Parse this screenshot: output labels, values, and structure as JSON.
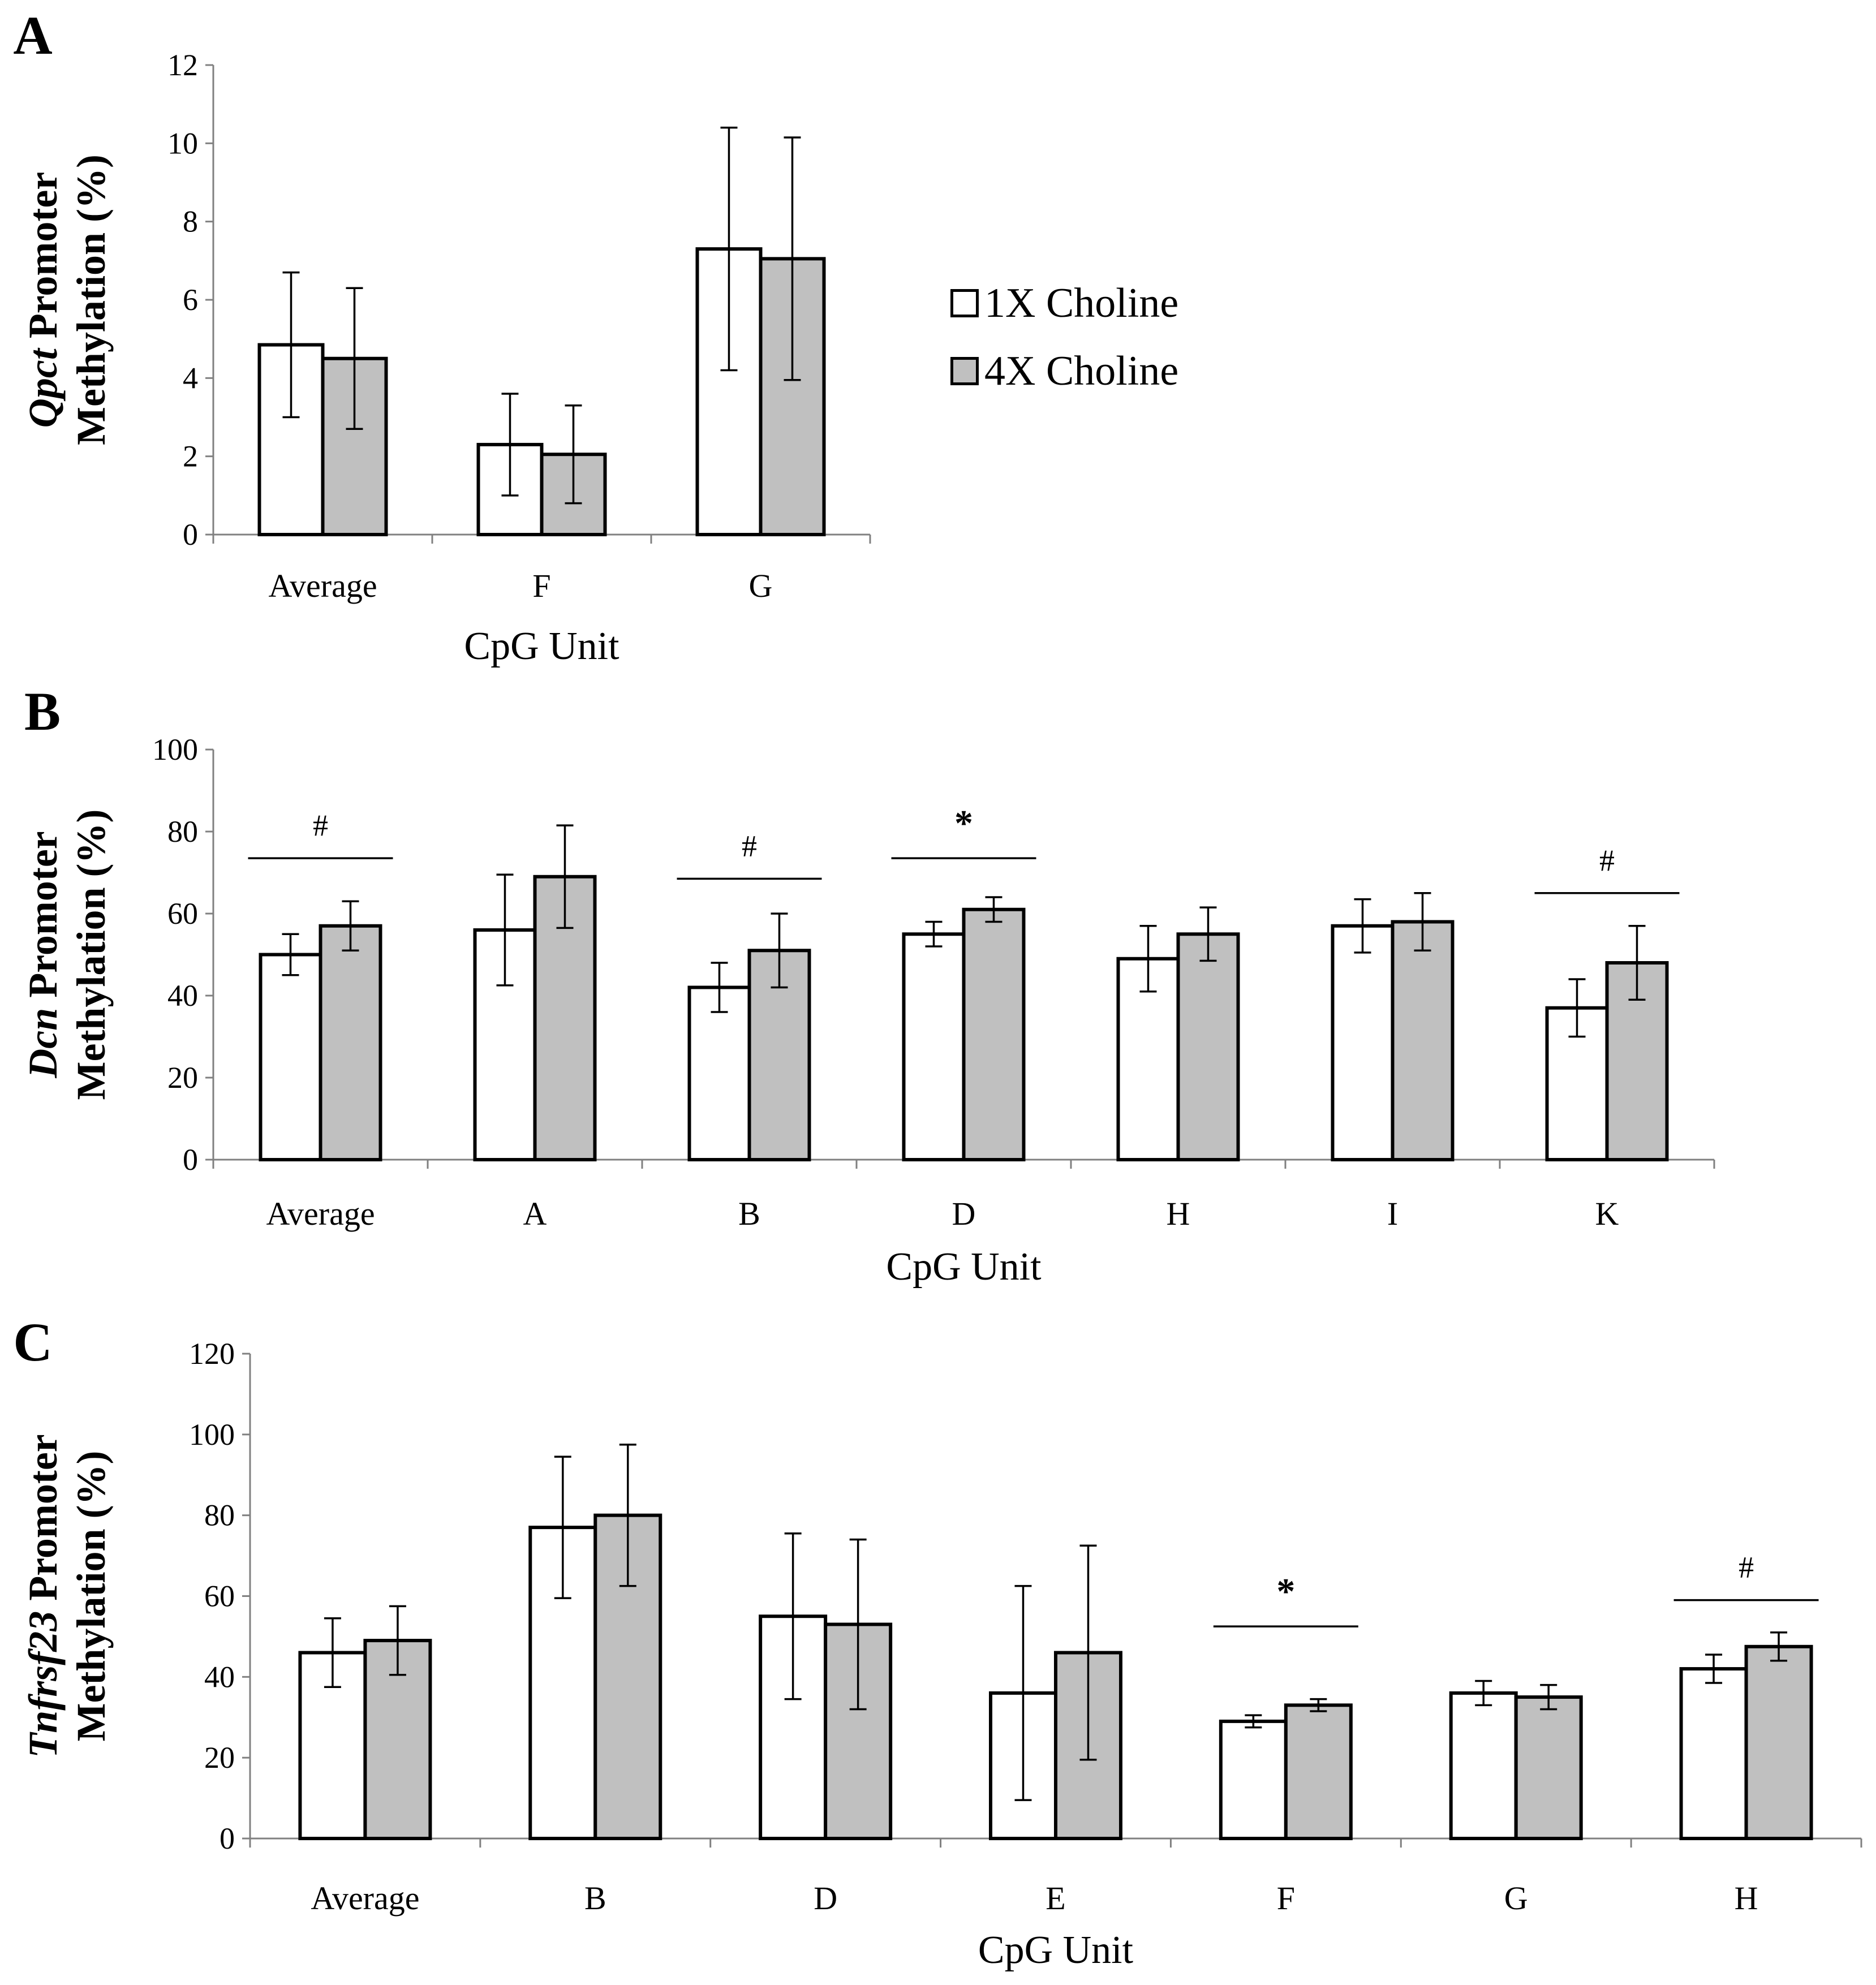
{
  "colors": {
    "series1": "#ffffff",
    "series2": "#c0c0c0",
    "stroke": "#000000"
  },
  "legend": {
    "series1_label": "1X Choline",
    "series2_label": "4X Choline"
  },
  "chart_data": [
    {
      "type": "bar",
      "panel_label": "A",
      "ylabel_italic": "Qpct",
      "ylabel_rest": " Promoter",
      "ylabel_line2": "Methylation (%)",
      "xlabel": "CpG Unit",
      "ylim": [
        0,
        12
      ],
      "yticks": [
        0,
        2,
        4,
        6,
        8,
        10,
        12
      ],
      "categories": [
        "Average",
        "F",
        "G"
      ],
      "series": [
        {
          "name": "1X Choline",
          "values": [
            4.85,
            2.3,
            7.3
          ],
          "errors": [
            1.85,
            1.3,
            3.1
          ]
        },
        {
          "name": "4X Choline",
          "values": [
            4.5,
            2.05,
            7.05
          ],
          "errors": [
            1.8,
            1.25,
            3.1
          ]
        }
      ],
      "significance": []
    },
    {
      "type": "bar",
      "panel_label": "B",
      "ylabel_italic": "Dcn",
      "ylabel_rest": " Promoter",
      "ylabel_line2": "Methylation (%)",
      "xlabel": "CpG Unit",
      "ylim": [
        0,
        100
      ],
      "yticks": [
        0,
        20,
        40,
        60,
        80,
        100
      ],
      "categories": [
        "Average",
        "A",
        "B",
        "D",
        "H",
        "I",
        "K"
      ],
      "series": [
        {
          "name": "1X Choline",
          "values": [
            50,
            56,
            42,
            55,
            49,
            57,
            37
          ],
          "errors": [
            5,
            13.5,
            6,
            3,
            8,
            6.5,
            7
          ]
        },
        {
          "name": "4X Choline",
          "values": [
            57,
            69,
            51,
            61,
            55,
            58,
            48
          ],
          "errors": [
            6,
            12.5,
            9,
            3,
            6.5,
            7,
            9
          ]
        }
      ],
      "significance": [
        {
          "category": 0,
          "symbol": "#",
          "level": 73.5
        },
        {
          "category": 2,
          "symbol": "#",
          "level": 68.5
        },
        {
          "category": 3,
          "symbol": "*",
          "level": 73.5
        },
        {
          "category": 6,
          "symbol": "#",
          "level": 65
        }
      ]
    },
    {
      "type": "bar",
      "panel_label": "C",
      "ylabel_italic": "Tnfrsf23",
      "ylabel_rest": " Promoter",
      "ylabel_line2": "Methylation (%)",
      "xlabel": "CpG Unit",
      "ylim": [
        0,
        120
      ],
      "yticks": [
        0,
        20,
        40,
        60,
        80,
        100,
        120
      ],
      "categories": [
        "Average",
        "B",
        "D",
        "E",
        "F",
        "G",
        "H"
      ],
      "series": [
        {
          "name": "1X Choline",
          "values": [
            46,
            77,
            55,
            36,
            29,
            36,
            42
          ],
          "errors": [
            8.5,
            17.5,
            20.5,
            26.5,
            1.5,
            3,
            3.5
          ]
        },
        {
          "name": "4X Choline",
          "values": [
            49,
            80,
            53,
            46,
            33,
            35,
            47.5
          ],
          "errors": [
            8.5,
            17.5,
            21,
            26.5,
            1.5,
            3,
            3.5
          ]
        }
      ],
      "significance": [
        {
          "category": 4,
          "symbol": "*",
          "level": 52.5
        },
        {
          "category": 6,
          "symbol": "#",
          "level": 59
        }
      ]
    }
  ]
}
